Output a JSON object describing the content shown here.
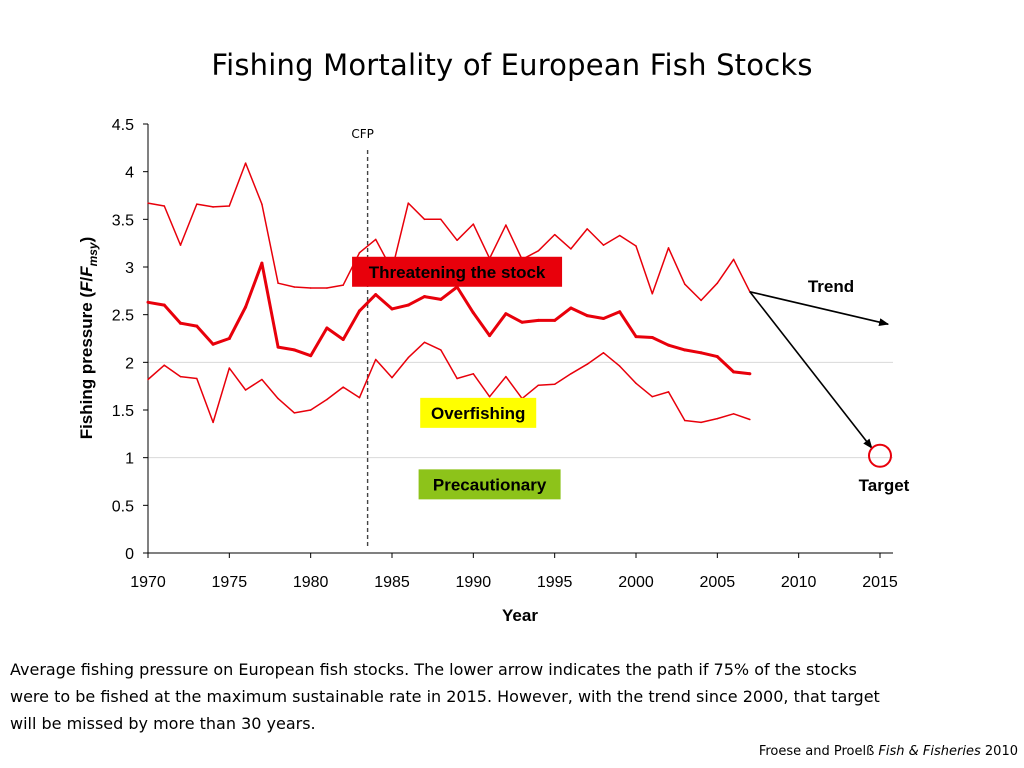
{
  "title": "Fishing Mortality of European Fish Stocks",
  "chart_data": {
    "type": "line",
    "xlabel": "Year",
    "ylabel_parts": [
      "Fishing pressure (",
      "F",
      "/",
      "F",
      "msy",
      ")"
    ],
    "xlim": [
      1970,
      2016
    ],
    "ylim": [
      0,
      4.5
    ],
    "xticks": [
      1970,
      1975,
      1980,
      1985,
      1990,
      1995,
      2000,
      2005,
      2010,
      2015
    ],
    "yticks": [
      0,
      0.5,
      1,
      1.5,
      2,
      2.5,
      3,
      3.5,
      4,
      4.5
    ],
    "ytick_labels": [
      "0",
      "0.5",
      "1",
      "1.5",
      "2",
      "2.5",
      "3",
      "3.5",
      "4",
      "4.5"
    ],
    "gridlines_y": [
      1,
      2
    ],
    "series": [
      {
        "role": "upper",
        "color": "#e8000b",
        "x": [
          1970,
          1971,
          1972,
          1973,
          1974,
          1975,
          1976,
          1977,
          1978,
          1979,
          1980,
          1981,
          1982,
          1983,
          1984,
          1985,
          1986,
          1987,
          1988,
          1989,
          1990,
          1991,
          1992,
          1993,
          1994,
          1995,
          1996,
          1997,
          1998,
          1999,
          2000,
          2001,
          2002,
          2003,
          2004,
          2005,
          2006,
          2007
        ],
        "values": [
          3.67,
          3.64,
          3.23,
          3.66,
          3.63,
          3.64,
          4.09,
          3.66,
          2.83,
          2.79,
          2.78,
          2.78,
          2.81,
          3.15,
          3.29,
          2.97,
          3.67,
          3.5,
          3.5,
          3.28,
          3.45,
          3.09,
          3.44,
          3.08,
          3.17,
          3.34,
          3.19,
          3.4,
          3.23,
          3.33,
          3.22,
          2.72,
          3.2,
          2.82,
          2.65,
          2.83,
          3.08,
          2.74
        ]
      },
      {
        "role": "mean",
        "color": "#e8000b",
        "x": [
          1970,
          1971,
          1972,
          1973,
          1974,
          1975,
          1976,
          1977,
          1978,
          1979,
          1980,
          1981,
          1982,
          1983,
          1984,
          1985,
          1986,
          1987,
          1988,
          1989,
          1990,
          1991,
          1992,
          1993,
          1994,
          1995,
          1996,
          1997,
          1998,
          1999,
          2000,
          2001,
          2002,
          2003,
          2004,
          2005,
          2006,
          2007
        ],
        "values": [
          2.63,
          2.6,
          2.41,
          2.38,
          2.19,
          2.25,
          2.58,
          3.04,
          2.16,
          2.13,
          2.07,
          2.36,
          2.24,
          2.54,
          2.71,
          2.56,
          2.6,
          2.69,
          2.66,
          2.79,
          2.52,
          2.28,
          2.51,
          2.42,
          2.44,
          2.44,
          2.57,
          2.49,
          2.46,
          2.53,
          2.27,
          2.26,
          2.18,
          2.13,
          2.1,
          2.06,
          1.9,
          1.88
        ]
      },
      {
        "role": "lower",
        "color": "#e8000b",
        "x": [
          1970,
          1971,
          1972,
          1973,
          1974,
          1975,
          1976,
          1977,
          1978,
          1979,
          1980,
          1981,
          1982,
          1983,
          1984,
          1985,
          1986,
          1987,
          1988,
          1989,
          1990,
          1991,
          1992,
          1993,
          1994,
          1995,
          1996,
          1997,
          1998,
          1999,
          2000,
          2001,
          2002,
          2003,
          2004,
          2005,
          2006,
          2007
        ],
        "values": [
          1.82,
          1.97,
          1.85,
          1.83,
          1.37,
          1.94,
          1.71,
          1.82,
          1.62,
          1.47,
          1.5,
          1.61,
          1.74,
          1.63,
          2.03,
          1.84,
          2.05,
          2.21,
          2.13,
          1.83,
          1.88,
          1.64,
          1.85,
          1.62,
          1.76,
          1.77,
          1.88,
          1.98,
          2.1,
          1.96,
          1.78,
          1.64,
          1.69,
          1.39,
          1.37,
          1.41,
          1.46,
          1.4
        ]
      }
    ],
    "cfp_line": {
      "x": 1983.5,
      "label": "CFP"
    },
    "zones": [
      {
        "key": "threatening",
        "label": "Threatening the stock",
        "bg": "#e8000b",
        "x": 1989.0,
        "y": 2.95,
        "width": 210
      },
      {
        "key": "overfishing",
        "label": "Overfishing",
        "bg": "#ffff00",
        "x": 1990.3,
        "y": 1.47,
        "width": 116
      },
      {
        "key": "precautionary",
        "label": "Precautionary",
        "bg": "#8dc31a",
        "x": 1991.0,
        "y": 0.72,
        "width": 142
      }
    ],
    "trend_label": "Trend",
    "target_label": "Target",
    "arrows": [
      {
        "name": "trend-arrow",
        "from": [
          2007,
          2.74
        ],
        "to": [
          2015.5,
          2.4
        ]
      },
      {
        "name": "target-arrow",
        "from": [
          2007,
          2.74
        ],
        "to": [
          2014.5,
          1.1
        ]
      }
    ],
    "target_marker": {
      "x": 2015,
      "y": 1.02
    }
  },
  "caption": "Average fishing pressure on European fish stocks. The lower arrow indicates the path if 75% of the stocks were to be fished at the maximum sustainable rate in 2015. However, with the trend since 2000, that target will be missed by more than 30 years.",
  "citation": {
    "prefix": "Froese and Proelß",
    "journal": "Fish & Fisheries",
    "year": "2010"
  }
}
